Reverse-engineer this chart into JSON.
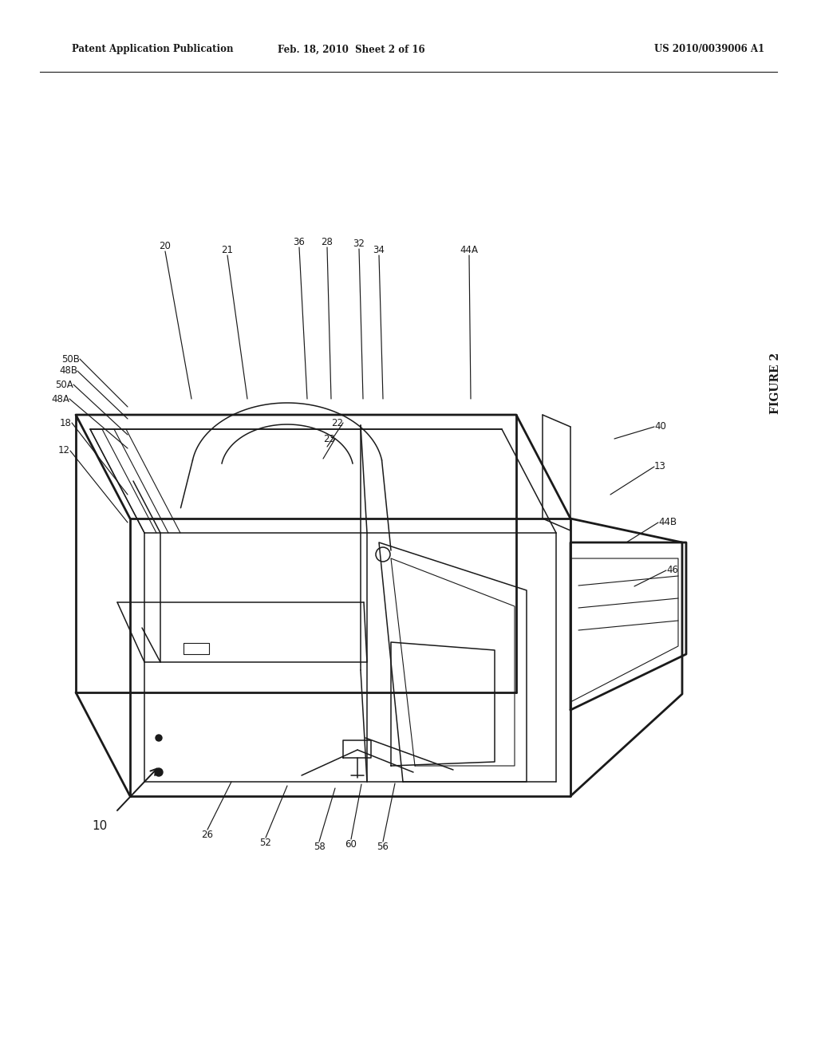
{
  "bg_color": "#ffffff",
  "line_color": "#1a1a1a",
  "header_left": "Patent Application Publication",
  "header_mid": "Feb. 18, 2010  Sheet 2 of 16",
  "header_right": "US 2010/0039006 A1",
  "figure_label": "FIGURE 2",
  "lw_outer": 2.0,
  "lw_inner": 1.1,
  "lw_thin": 0.8,
  "fig_w": 10.24,
  "fig_h": 13.2,
  "dpi": 100
}
